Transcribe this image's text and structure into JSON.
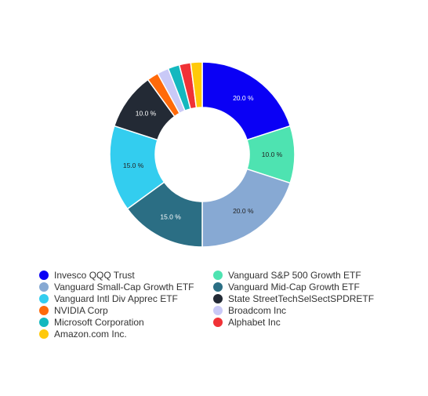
{
  "chart_data": {
    "type": "pie",
    "donut": true,
    "title": "",
    "legend_position": "bottom",
    "slices": [
      {
        "name": "Invesco QQQ Trust",
        "value": 20.0,
        "label": "20.0 %",
        "color": "#0a00f5",
        "label_color": "#ffffff"
      },
      {
        "name": "Vanguard S&P 500 Growth ETF",
        "value": 10.0,
        "label": "10.0 %",
        "color": "#4ee3b1",
        "label_color": "#222222"
      },
      {
        "name": "Vanguard Small-Cap Growth ETF",
        "value": 20.0,
        "label": "20.0 %",
        "color": "#87a9d3",
        "label_color": "#222222"
      },
      {
        "name": "Vanguard Mid-Cap Growth ETF",
        "value": 15.0,
        "label": "15.0 %",
        "color": "#2b6e84",
        "label_color": "#ffffff"
      },
      {
        "name": "Vanguard Intl Div Apprec ETF",
        "value": 15.0,
        "label": "15.0 %",
        "color": "#33cdef",
        "label_color": "#222222"
      },
      {
        "name": "State StreetTechSelSectSPDRETF",
        "value": 10.0,
        "label": "10.0 %",
        "color": "#232a35",
        "label_color": "#ffffff"
      },
      {
        "name": "NVIDIA Corp",
        "value": 2.0,
        "label": "",
        "color": "#ff6a0a",
        "label_color": "#222222"
      },
      {
        "name": "Broadcom Inc",
        "value": 2.0,
        "label": "",
        "color": "#c9c9f7",
        "label_color": "#222222"
      },
      {
        "name": "Microsoft Corporation",
        "value": 2.0,
        "label": "",
        "color": "#14b8bf",
        "label_color": "#222222"
      },
      {
        "name": "Alphabet Inc",
        "value": 2.0,
        "label": "",
        "color": "#f03236",
        "label_color": "#222222"
      },
      {
        "name": "Amazon.com Inc.",
        "value": 2.0,
        "label": "",
        "color": "#ffc90a",
        "label_color": "#222222"
      }
    ]
  }
}
